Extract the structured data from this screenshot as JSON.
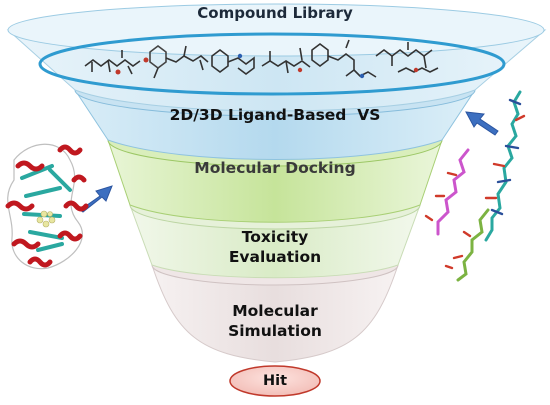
{
  "diagram": {
    "stages": [
      {
        "id": "library",
        "label": "Compound Library"
      },
      {
        "id": "ligand",
        "label": "2D/3D Ligand-Based  VS"
      },
      {
        "id": "docking",
        "label": "Molecular Docking"
      },
      {
        "id": "toxicity",
        "label_line1": "Toxicity",
        "label_line2": "Evaluation"
      },
      {
        "id": "simulation",
        "label_line1": "Molecular",
        "label_line2": "Simulation"
      }
    ],
    "hit_label": "Hit",
    "colors": {
      "library_band": "#cfe7f3",
      "ligand_band": "#b9dbef",
      "docking_band": "#cde8a8",
      "toxicity_band": "#dfeecf",
      "simulation_band": "#ece4e4",
      "ellipse_outline": "#2f9bd0",
      "arrow": "#3c6fc0",
      "hit_fill": "#f4c7c2",
      "hit_stroke": "#c0392b",
      "protein_helix": "#c0181f",
      "protein_sheet": "#2aa8a0"
    },
    "icons": [
      "protein-structure-icon",
      "ligand-molecules-icon",
      "compound-molecules-icon",
      "arrow-right-icon"
    ]
  }
}
